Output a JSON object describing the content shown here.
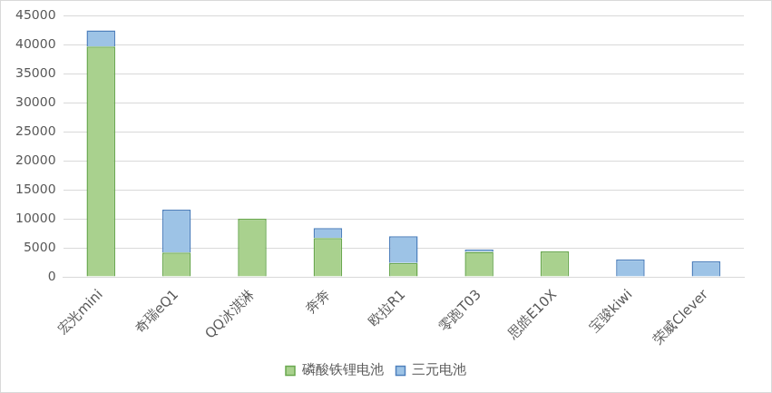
{
  "chart_data": {
    "type": "bar",
    "stacked": true,
    "grid": true,
    "legend": "bottom",
    "categories": [
      "宏光mini",
      "奇瑞eQ1",
      "QQ冰淇淋",
      "奔奔",
      "欧拉R1",
      "零跑T03",
      "思皓E10X",
      "宝骏kiwi",
      "荣威Clever"
    ],
    "series": [
      {
        "name": "磷酸铁锂电池",
        "color": "#a9d18e",
        "values": [
          39700,
          4200,
          10000,
          6700,
          2400,
          4300,
          4400,
          0,
          0
        ]
      },
      {
        "name": "三元电池",
        "color": "#9dc3e6",
        "values": [
          2800,
          7400,
          0,
          1700,
          4600,
          400,
          0,
          3000,
          2700
        ]
      }
    ],
    "ylim": [
      0,
      45000
    ],
    "yticks": [
      0,
      5000,
      10000,
      15000,
      20000,
      25000,
      30000,
      35000,
      40000,
      45000
    ]
  }
}
